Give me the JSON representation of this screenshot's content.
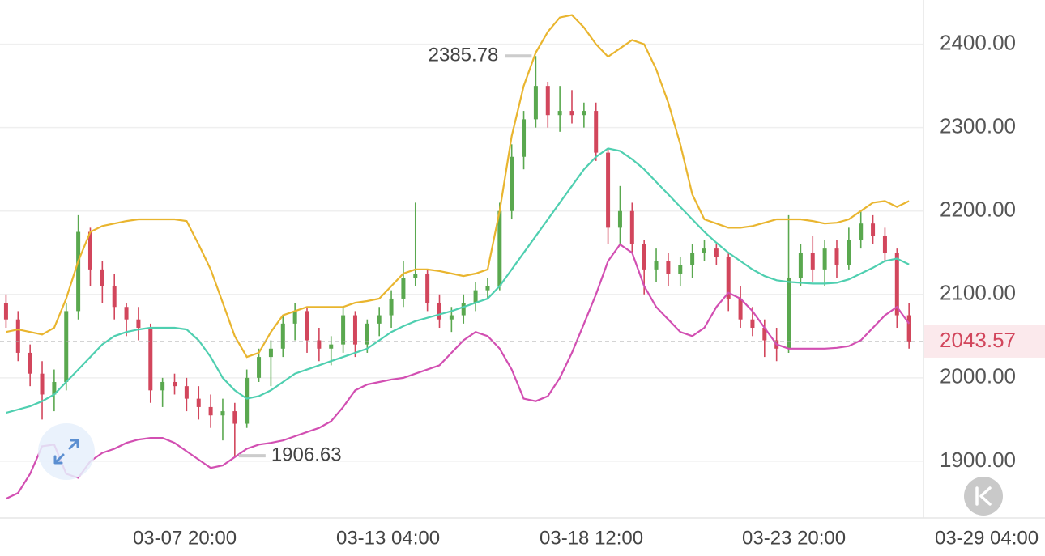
{
  "chart_data": {
    "type": "candlestick",
    "up_color": "#5aa84f",
    "down_color": "#d2465c",
    "open": [
      2090,
      2070,
      2030,
      2005,
      1980,
      1995,
      2080,
      2175,
      2130,
      2110,
      2085,
      2070,
      2060,
      1985,
      1995,
      1990,
      1975,
      1965,
      1955,
      1960,
      1945,
      2000,
      2025,
      2035,
      2065,
      2080,
      2045,
      2035,
      2040,
      2075,
      2040,
      2065,
      2075,
      2095,
      2120,
      2125,
      2090,
      2070,
      2075,
      2090,
      2105,
      2110,
      2200,
      2265,
      2310,
      2350,
      2315,
      2320,
      2315,
      2320,
      2270,
      2180,
      2200,
      2160,
      2130,
      2140,
      2125,
      2135,
      2150,
      2155,
      2145,
      2095,
      2070,
      2060,
      2045,
      2035,
      2120,
      2150,
      2130,
      2155,
      2135,
      2165,
      2185,
      2170,
      2150,
      2075
    ],
    "high": [
      2100,
      2080,
      2040,
      2020,
      2010,
      2090,
      2195,
      2180,
      2140,
      2125,
      2090,
      2085,
      2065,
      2000,
      2005,
      2000,
      1990,
      1980,
      1975,
      1970,
      2010,
      2035,
      2045,
      2075,
      2090,
      2085,
      2060,
      2050,
      2085,
      2080,
      2070,
      2085,
      2105,
      2140,
      2210,
      2130,
      2100,
      2085,
      2100,
      2115,
      2120,
      2210,
      2280,
      2320,
      2385.78,
      2355,
      2350,
      2345,
      2330,
      2330,
      2275,
      2230,
      2210,
      2165,
      2155,
      2150,
      2145,
      2160,
      2165,
      2160,
      2150,
      2110,
      2085,
      2070,
      2060,
      2195,
      2160,
      2170,
      2165,
      2165,
      2180,
      2200,
      2195,
      2180,
      2155,
      2090
    ],
    "low": [
      2060,
      2020,
      1990,
      1950,
      1960,
      1985,
      2070,
      2110,
      2090,
      2070,
      2050,
      2045,
      1970,
      1965,
      1980,
      1960,
      1950,
      1940,
      1925,
      1906.63,
      1940,
      1995,
      1990,
      2025,
      2045,
      2030,
      2020,
      2015,
      2030,
      2025,
      2030,
      2050,
      2060,
      2085,
      2110,
      2080,
      2060,
      2055,
      2065,
      2080,
      2095,
      2105,
      2190,
      2250,
      2300,
      2300,
      2295,
      2305,
      2300,
      2260,
      2160,
      2160,
      2150,
      2100,
      2115,
      2110,
      2110,
      2120,
      2140,
      2135,
      2080,
      2060,
      2050,
      2025,
      2020,
      2030,
      2110,
      2115,
      2110,
      2120,
      2130,
      2155,
      2160,
      2140,
      2060,
      2035
    ],
    "close": [
      2070,
      2030,
      2005,
      1980,
      1995,
      2080,
      2175,
      2130,
      2110,
      2085,
      2070,
      2060,
      1985,
      1995,
      1990,
      1975,
      1965,
      1955,
      1960,
      1945,
      2000,
      2025,
      2035,
      2065,
      2080,
      2045,
      2035,
      2040,
      2075,
      2040,
      2065,
      2075,
      2095,
      2120,
      2125,
      2090,
      2070,
      2075,
      2090,
      2105,
      2110,
      2200,
      2265,
      2310,
      2350,
      2315,
      2320,
      2315,
      2320,
      2270,
      2180,
      2200,
      2160,
      2130,
      2140,
      2125,
      2135,
      2150,
      2155,
      2145,
      2095,
      2070,
      2060,
      2045,
      2035,
      2120,
      2150,
      2130,
      2155,
      2135,
      2165,
      2185,
      2170,
      2150,
      2075,
      2043.57
    ],
    "series": [
      {
        "color": "#e9b52f",
        "values": [
          2055,
          2058,
          2055,
          2052,
          2060,
          2095,
          2140,
          2175,
          2182,
          2185,
          2188,
          2190,
          2190,
          2190,
          2190,
          2188,
          2160,
          2130,
          2090,
          2050,
          2025,
          2030,
          2055,
          2075,
          2080,
          2085,
          2085,
          2085,
          2085,
          2090,
          2092,
          2095,
          2110,
          2125,
          2130,
          2130,
          2128,
          2125,
          2122,
          2125,
          2130,
          2200,
          2290,
          2350,
          2390,
          2415,
          2432,
          2435,
          2420,
          2400,
          2385,
          2395,
          2405,
          2400,
          2370,
          2330,
          2280,
          2220,
          2190,
          2185,
          2180,
          2180,
          2182,
          2186,
          2190,
          2190,
          2190,
          2188,
          2185,
          2186,
          2190,
          2200,
          2210,
          2212,
          2205,
          2212
        ]
      },
      {
        "color": "#4fcfb0",
        "values": [
          1958,
          1962,
          1966,
          1972,
          1980,
          1995,
          2010,
          2025,
          2040,
          2050,
          2055,
          2058,
          2060,
          2060,
          2060,
          2058,
          2045,
          2025,
          2000,
          1985,
          1975,
          1978,
          1985,
          1995,
          2005,
          2010,
          2015,
          2020,
          2025,
          2030,
          2035,
          2045,
          2055,
          2062,
          2068,
          2072,
          2076,
          2080,
          2085,
          2090,
          2095,
          2110,
          2130,
          2150,
          2170,
          2190,
          2210,
          2230,
          2250,
          2265,
          2275,
          2272,
          2262,
          2250,
          2235,
          2220,
          2205,
          2190,
          2175,
          2162,
          2150,
          2140,
          2130,
          2122,
          2117,
          2115,
          2114,
          2113,
          2113,
          2114,
          2118,
          2125,
          2132,
          2140,
          2143,
          2136
        ]
      },
      {
        "color": "#d24fb2",
        "values": [
          1855,
          1862,
          1885,
          1918,
          1920,
          1885,
          1880,
          1900,
          1910,
          1915,
          1922,
          1926,
          1928,
          1928,
          1922,
          1912,
          1902,
          1892,
          1895,
          1905,
          1915,
          1920,
          1922,
          1925,
          1930,
          1935,
          1940,
          1948,
          1965,
          1985,
          1992,
          1995,
          1998,
          2000,
          2005,
          2010,
          2015,
          2030,
          2045,
          2055,
          2050,
          2035,
          2010,
          1975,
          1972,
          1978,
          2000,
          2030,
          2065,
          2100,
          2140,
          2160,
          2150,
          2110,
          2085,
          2070,
          2055,
          2050,
          2060,
          2085,
          2102,
          2095,
          2080,
          2060,
          2040,
          2035,
          2035,
          2035,
          2035,
          2036,
          2038,
          2045,
          2060,
          2075,
          2085,
          2065
        ]
      }
    ],
    "max_marker": 2385.78,
    "min_marker": 1906.63,
    "last_price": 2043.57,
    "ylim": [
      1832,
      2453
    ],
    "yticks": [
      {
        "value": 1900,
        "label": "1900.00"
      },
      {
        "value": 2000,
        "label": "2000.00"
      },
      {
        "value": 2100,
        "label": "2100.00"
      },
      {
        "value": 2200,
        "label": "2200.00"
      },
      {
        "value": 2300,
        "label": "2300.00"
      },
      {
        "value": 2400,
        "label": "2400.00"
      }
    ],
    "xlim": [
      -0.5,
      76.2
    ],
    "xticks": [
      {
        "value": 14.84,
        "label": "03-07 20:00"
      },
      {
        "value": 31.73,
        "label": "03-13 04:00"
      },
      {
        "value": 48.62,
        "label": "03-18 12:00"
      },
      {
        "value": 65.44,
        "label": "03-23 20:00"
      },
      {
        "value": 81.45,
        "label": "03-29 04:00"
      }
    ],
    "grid": true
  }
}
